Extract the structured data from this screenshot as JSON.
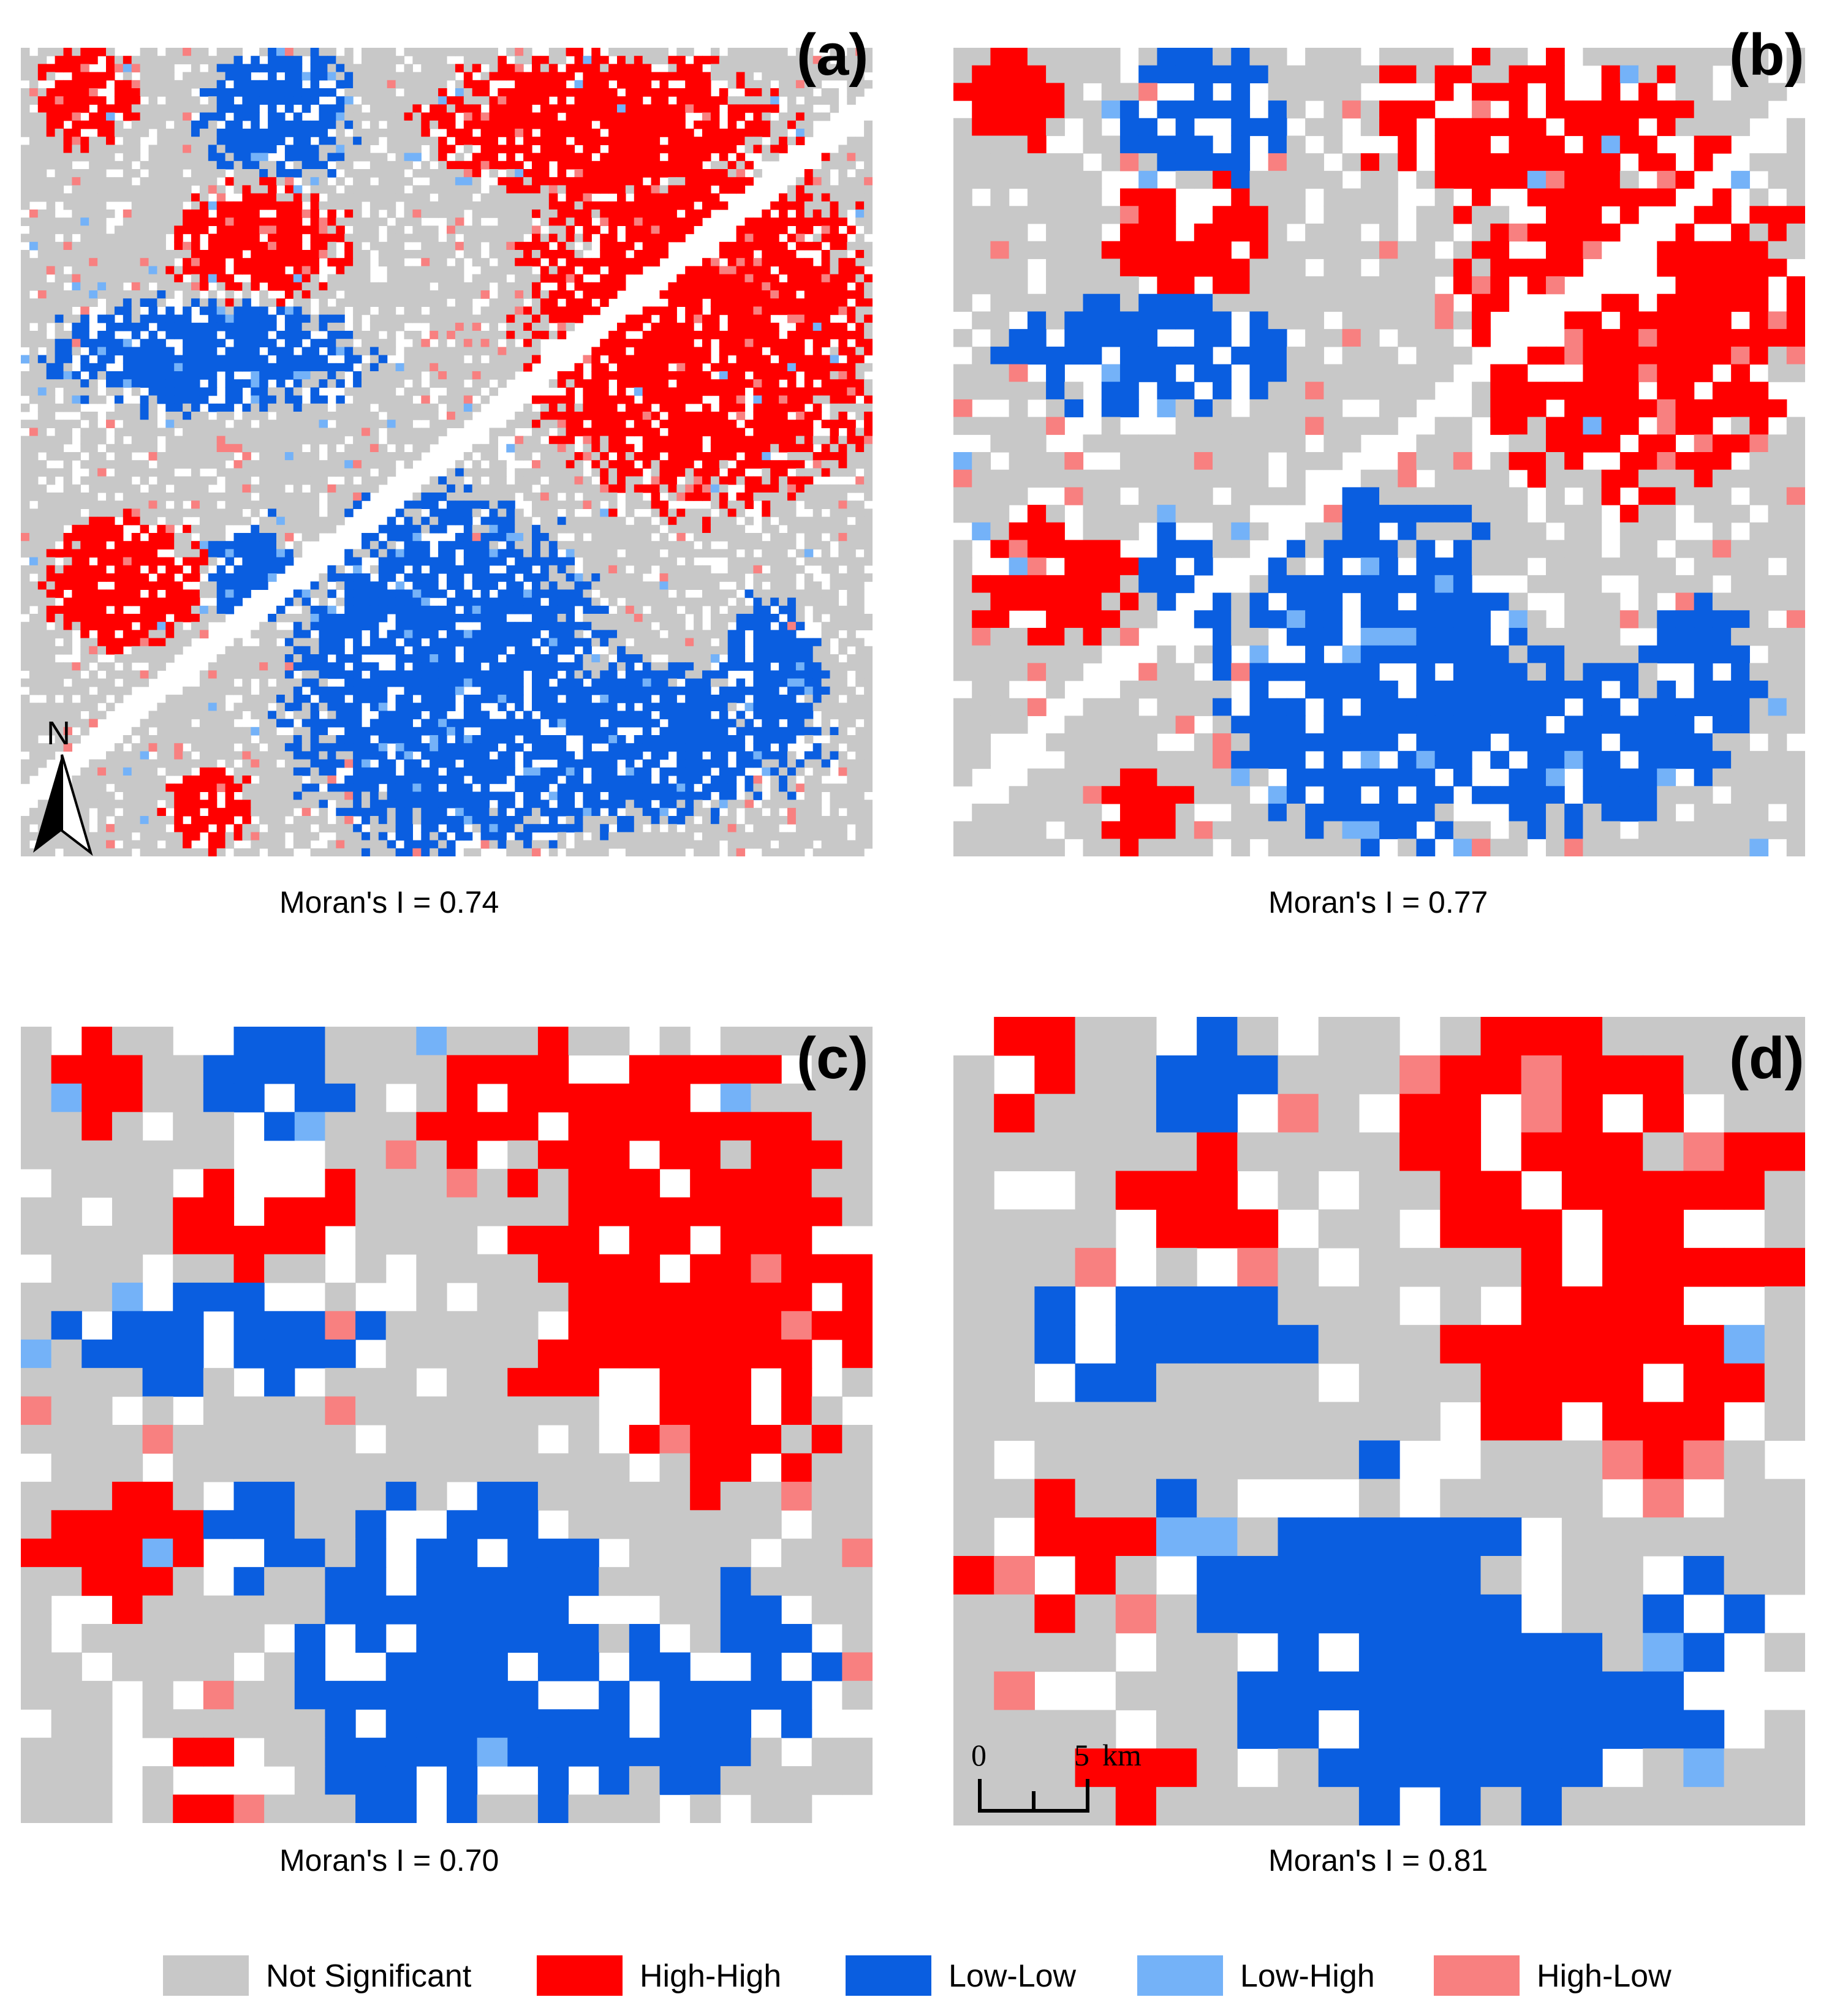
{
  "colors": {
    "not_significant": "#c8c8c8",
    "high_high": "#ff0000",
    "low_low": "#0a5ee0",
    "low_high": "#74b2f8",
    "high_low": "#f88080",
    "background": "#ffffff"
  },
  "panels": [
    {
      "id": "a",
      "label": "(a)",
      "moran": "Moran's I = 0.74",
      "grid": 100,
      "seed": 11
    },
    {
      "id": "b",
      "label": "(b)",
      "moran": "Moran's I = 0.77",
      "grid": 46,
      "seed": 23
    },
    {
      "id": "c",
      "label": "(c)",
      "moran": "Moran's I = 0.70",
      "grid": 28,
      "seed": 37
    },
    {
      "id": "d",
      "label": "(d)",
      "moran": "Moran's I = 0.81",
      "grid": 21,
      "seed": 53
    }
  ],
  "north_arrow": {
    "letter": "N"
  },
  "scale_bar": {
    "start": "0",
    "end": "5",
    "unit": "km"
  },
  "legend": [
    {
      "key": "not_significant",
      "label": "Not Significant"
    },
    {
      "key": "high_high",
      "label": "High-High"
    },
    {
      "key": "low_low",
      "label": "Low-Low"
    },
    {
      "key": "low_high",
      "label": "Low-High"
    },
    {
      "key": "high_low",
      "label": "High-Low"
    }
  ]
}
